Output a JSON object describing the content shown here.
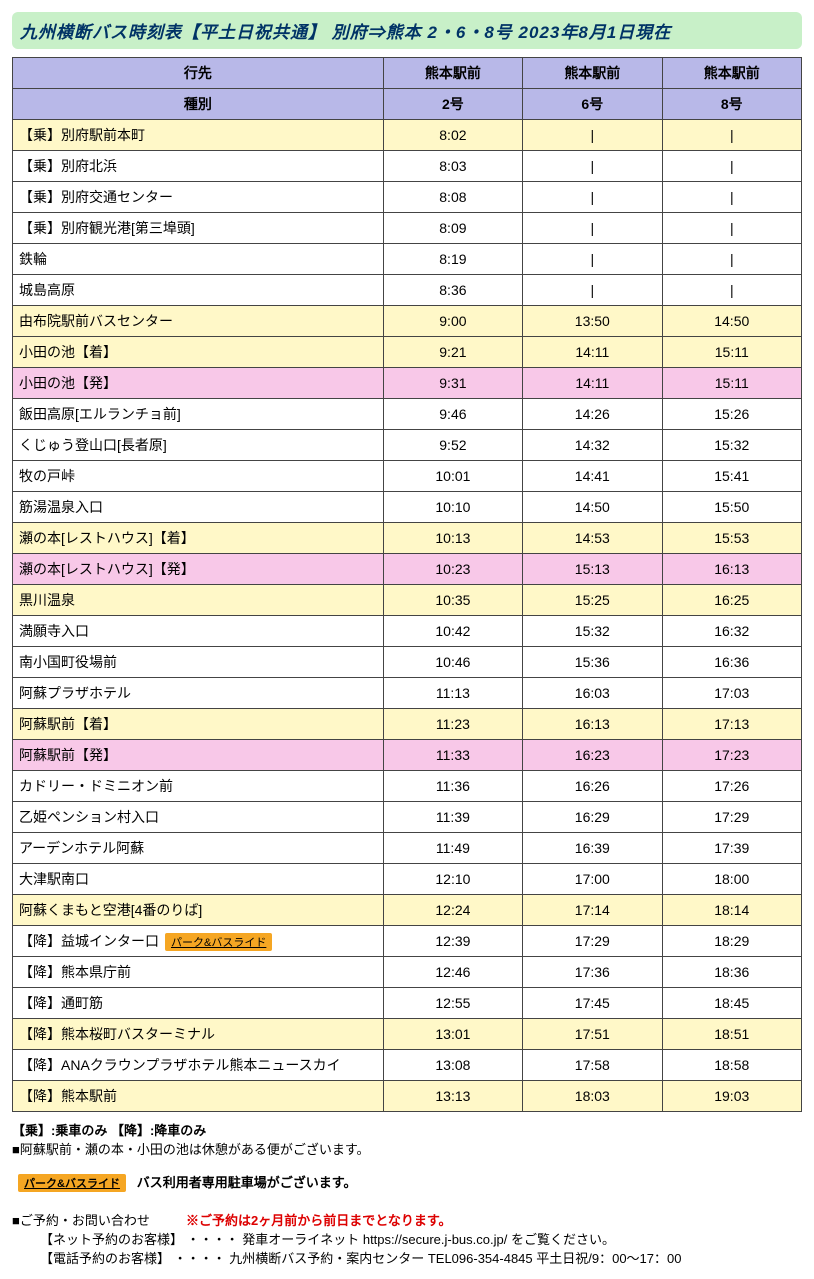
{
  "title": "九州横断バス時刻表【平土日祝共通】 別府⇒熊本 2・6・8号   2023年8月1日現在",
  "headers": {
    "destLabel": "行先",
    "typeLabel": "種別",
    "dest": [
      "熊本駅前",
      "熊本駅前",
      "熊本駅前"
    ],
    "type": [
      "2号",
      "6号",
      "8号"
    ]
  },
  "parkRideLabel": "パーク&バスライド",
  "rows": [
    {
      "cls": "row-yellow",
      "stop": "【乗】別府駅前本町",
      "t": [
        "8:02",
        "|",
        "|"
      ]
    },
    {
      "cls": "row-white",
      "stop": "【乗】別府北浜",
      "t": [
        "8:03",
        "|",
        "|"
      ]
    },
    {
      "cls": "row-white",
      "stop": "【乗】別府交通センター",
      "t": [
        "8:08",
        "|",
        "|"
      ]
    },
    {
      "cls": "row-white",
      "stop": "【乗】別府観光港[第三埠頭]",
      "t": [
        "8:09",
        "|",
        "|"
      ]
    },
    {
      "cls": "row-white",
      "stop": "鉄輪",
      "t": [
        "8:19",
        "|",
        "|"
      ]
    },
    {
      "cls": "row-white",
      "stop": "城島高原",
      "t": [
        "8:36",
        "|",
        "|"
      ]
    },
    {
      "cls": "row-yellow",
      "stop": "由布院駅前バスセンター",
      "t": [
        "9:00",
        "13:50",
        "14:50"
      ]
    },
    {
      "cls": "row-yellow",
      "stop": "小田の池【着】",
      "t": [
        "9:21",
        "14:11",
        "15:11"
      ]
    },
    {
      "cls": "row-pink",
      "stop": "小田の池【発】",
      "t": [
        "9:31",
        "14:11",
        "15:11"
      ]
    },
    {
      "cls": "row-white",
      "stop": "飯田高原[エルランチョ前]",
      "t": [
        "9:46",
        "14:26",
        "15:26"
      ]
    },
    {
      "cls": "row-white",
      "stop": "くじゅう登山口[長者原]",
      "t": [
        "9:52",
        "14:32",
        "15:32"
      ]
    },
    {
      "cls": "row-white",
      "stop": "牧の戸峠",
      "t": [
        "10:01",
        "14:41",
        "15:41"
      ]
    },
    {
      "cls": "row-white",
      "stop": "筋湯温泉入口",
      "t": [
        "10:10",
        "14:50",
        "15:50"
      ]
    },
    {
      "cls": "row-yellow",
      "stop": "瀬の本[レストハウス]【着】",
      "t": [
        "10:13",
        "14:53",
        "15:53"
      ]
    },
    {
      "cls": "row-pink",
      "stop": "瀬の本[レストハウス]【発】",
      "t": [
        "10:23",
        "15:13",
        "16:13"
      ]
    },
    {
      "cls": "row-yellow",
      "stop": "黒川温泉",
      "t": [
        "10:35",
        "15:25",
        "16:25"
      ]
    },
    {
      "cls": "row-white",
      "stop": "満願寺入口",
      "t": [
        "10:42",
        "15:32",
        "16:32"
      ]
    },
    {
      "cls": "row-white",
      "stop": "南小国町役場前",
      "t": [
        "10:46",
        "15:36",
        "16:36"
      ]
    },
    {
      "cls": "row-white",
      "stop": "阿蘇プラザホテル",
      "t": [
        "11:13",
        "16:03",
        "17:03"
      ]
    },
    {
      "cls": "row-yellow",
      "stop": "阿蘇駅前【着】",
      "t": [
        "11:23",
        "16:13",
        "17:13"
      ]
    },
    {
      "cls": "row-pink",
      "stop": "阿蘇駅前【発】",
      "t": [
        "11:33",
        "16:23",
        "17:23"
      ]
    },
    {
      "cls": "row-white",
      "stop": "カドリー・ドミニオン前",
      "t": [
        "11:36",
        "16:26",
        "17:26"
      ]
    },
    {
      "cls": "row-white",
      "stop": "乙姫ペンション村入口",
      "t": [
        "11:39",
        "16:29",
        "17:29"
      ]
    },
    {
      "cls": "row-white",
      "stop": "アーデンホテル阿蘇",
      "t": [
        "11:49",
        "16:39",
        "17:39"
      ]
    },
    {
      "cls": "row-white",
      "stop": "大津駅南口",
      "t": [
        "12:10",
        "17:00",
        "18:00"
      ]
    },
    {
      "cls": "row-yellow",
      "stop": "阿蘇くまもと空港[4番のりば]",
      "t": [
        "12:24",
        "17:14",
        "18:14"
      ]
    },
    {
      "cls": "row-white",
      "stop": "【降】益城インター口",
      "parkRide": true,
      "t": [
        "12:39",
        "17:29",
        "18:29"
      ]
    },
    {
      "cls": "row-white",
      "stop": "【降】熊本県庁前",
      "t": [
        "12:46",
        "17:36",
        "18:36"
      ]
    },
    {
      "cls": "row-white",
      "stop": "【降】通町筋",
      "t": [
        "12:55",
        "17:45",
        "18:45"
      ]
    },
    {
      "cls": "row-yellow",
      "stop": "【降】熊本桜町バスターミナル",
      "t": [
        "13:01",
        "17:51",
        "18:51"
      ]
    },
    {
      "cls": "row-white",
      "stop": "【降】ANAクラウンプラザホテル熊本ニュースカイ",
      "t": [
        "13:08",
        "17:58",
        "18:58"
      ]
    },
    {
      "cls": "row-yellow",
      "stop": "【降】熊本駅前",
      "t": [
        "13:13",
        "18:03",
        "19:03"
      ]
    }
  ],
  "notes": {
    "line1": "【乗】:乗車のみ 【降】:降車のみ",
    "line2": "■阿蘇駅前・瀬の本・小田の池は休憩がある便がございます。",
    "parkRideNote": "バス利用者専用駐車場がございます。"
  },
  "contact": {
    "heading": "■ご予約・お問い合わせ",
    "redNotice": "※ご予約は2ヶ月前から前日までとなります。",
    "net": "【ネット予約のお客様】 ・・・・ 発車オーライネット  https://secure.j-bus.co.jp/  をご覧ください。",
    "tel": "【電話予約のお客様】 ・・・・ 九州横断バス予約・案内センター TEL096-354-4845 平土日祝/9：00～17：00"
  }
}
